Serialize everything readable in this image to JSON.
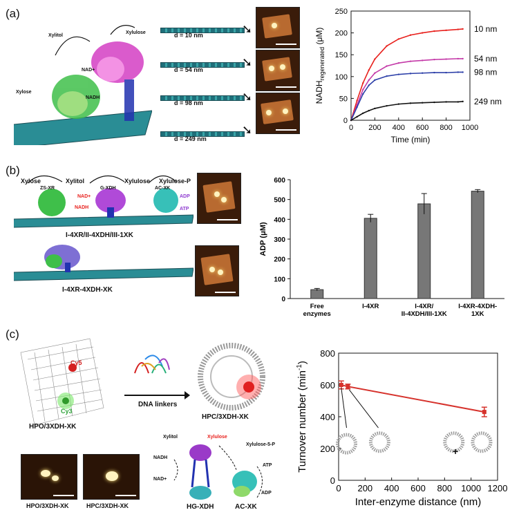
{
  "panels": {
    "a": "(a)",
    "b": "(b)",
    "c": "(c)"
  },
  "panel_a": {
    "reaction": {
      "xylose": "Xylose",
      "xylitol": "Xylitol",
      "xylulose": "Xylulose",
      "nadplus": "NAD+",
      "nadh": "NADH"
    },
    "distances": [
      "d = 10 nm",
      "d = 54 nm",
      "d = 98 nm",
      "d = 249 nm"
    ]
  },
  "panel_b": {
    "scheme": {
      "xylose": "Xylose",
      "xylitol": "Xylitol",
      "xylulose": "Xylulose",
      "xylulose_p": "Xylulose-P",
      "zs_xr": "ZS-XR",
      "g_xdh": "G-XDH",
      "ac_xk": "AC-XK",
      "nadplus": "NAD+",
      "nadh": "NADH",
      "adp": "ADP",
      "atp": "ATP"
    },
    "construct1": "I-4XR/II-4XDH/III-1XK",
    "construct2": "I-4XR-4XDH-XK"
  },
  "panel_c": {
    "cy5": "Cy5",
    "cy3": "Cy3",
    "linkers": "DNA linkers",
    "hpo": "HPO/3XDH-XK",
    "hpc": "HPC/3XDH-XK",
    "afm1": "HPO/3XDH-XK",
    "afm2": "HPC/3XDH-XK",
    "scheme": {
      "xylitol": "Xylitol",
      "xylulose": "Xylulose",
      "xylulose5p": "Xylulose-5-P",
      "nadh": "NADH",
      "nadplus": "NAD+",
      "atp": "ATP",
      "adp": "ADP",
      "hg_xdh": "HG-XDH",
      "ac_xk": "AC-XK"
    },
    "plus": "+"
  },
  "colors": {
    "red": "#e8201c",
    "magenta": "#c43aa8",
    "blue": "#2c3fa8",
    "black": "#111111",
    "gray": "#777777",
    "errred": "#d6322c"
  },
  "chart_data": [
    {
      "id": "a",
      "type": "line",
      "xlabel": "Time (min)",
      "ylabel": "NADH",
      "ylabel_sub": "regenerated",
      "ylabel_unit": " (μM)",
      "xlim": [
        0,
        1000
      ],
      "ylim": [
        0,
        250
      ],
      "xticks": [
        0,
        200,
        400,
        600,
        800,
        1000
      ],
      "yticks": [
        0,
        50,
        100,
        150,
        200,
        250
      ],
      "series": [
        {
          "name": "10 nm",
          "color": "#e8201c",
          "x": [
            0,
            50,
            100,
            150,
            200,
            300,
            400,
            500,
            600,
            700,
            800,
            900,
            940
          ],
          "y": [
            0,
            45,
            85,
            115,
            140,
            170,
            186,
            195,
            200,
            204,
            206,
            208,
            209
          ]
        },
        {
          "name": "54 nm",
          "color": "#c43aa8",
          "x": [
            0,
            50,
            100,
            150,
            200,
            300,
            400,
            500,
            600,
            700,
            800,
            900,
            940
          ],
          "y": [
            0,
            35,
            70,
            92,
            108,
            124,
            131,
            135,
            137,
            139,
            140,
            141,
            141
          ]
        },
        {
          "name": "98 nm",
          "color": "#2c3fa8",
          "x": [
            0,
            50,
            100,
            150,
            200,
            300,
            400,
            500,
            600,
            700,
            800,
            900,
            940
          ],
          "y": [
            0,
            30,
            60,
            80,
            92,
            101,
            105,
            107,
            108,
            109,
            109,
            110,
            110
          ]
        },
        {
          "name": "249 nm",
          "color": "#111111",
          "x": [
            0,
            50,
            100,
            150,
            200,
            300,
            400,
            500,
            600,
            700,
            800,
            900,
            940
          ],
          "y": [
            0,
            8,
            16,
            22,
            27,
            33,
            37,
            39,
            40,
            41,
            42,
            42,
            43
          ]
        }
      ]
    },
    {
      "id": "b",
      "type": "bar",
      "ylabel": "ADP (μM)",
      "ylim": [
        0,
        600
      ],
      "yticks": [
        0,
        100,
        200,
        300,
        400,
        500,
        600
      ],
      "categories": [
        "Free enzymes",
        "I-4XR",
        "I-4XR/ II-4XDH/III-1XK",
        "I-4XR-4XDH- 1XK"
      ],
      "values": [
        45,
        405,
        478,
        542
      ],
      "errors": [
        6,
        20,
        52,
        8
      ]
    },
    {
      "id": "c",
      "type": "line",
      "xlabel": "Inter-enzyme distance (nm)",
      "ylabel": "Turnover number (min",
      "ylabel_sup": "-1",
      "ylabel_end": ")",
      "xlim": [
        0,
        1200
      ],
      "ylim": [
        0,
        800
      ],
      "xticks": [
        0,
        200,
        400,
        600,
        800,
        1000,
        1200
      ],
      "yticks": [
        0,
        200,
        400,
        600,
        800
      ],
      "x": [
        20,
        70,
        1100
      ],
      "y": [
        600,
        590,
        430
      ],
      "errors": [
        25,
        15,
        30
      ],
      "color": "#d6322c"
    }
  ]
}
